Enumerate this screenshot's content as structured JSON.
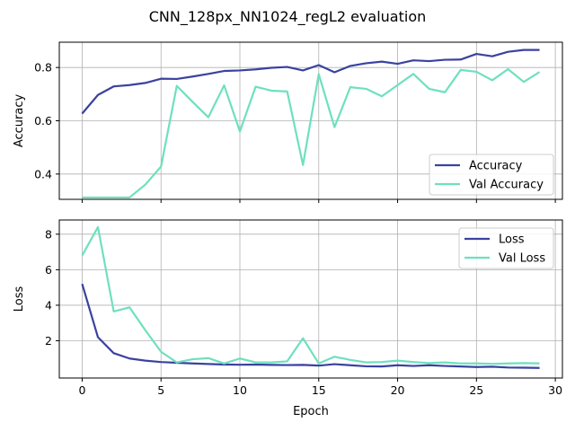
{
  "figure": {
    "suptitle": "CNN_128px_NN1024_regL2 evaluation"
  },
  "colors": {
    "train": "#3a42a0",
    "val": "#6ee0bf",
    "grid": "#b0b0b0"
  },
  "chart_data": [
    {
      "type": "line",
      "ylabel": "Accuracy",
      "xlabel": "",
      "xlim": [
        -1.45,
        30.45
      ],
      "ylim": [
        0.305,
        0.895
      ],
      "xticks": [
        0,
        5,
        10,
        15,
        20,
        25,
        30
      ],
      "xticklabels_visible": false,
      "yticks": [
        0.4,
        0.6,
        0.8
      ],
      "yticklabels": [
        "0.4",
        "0.6",
        "0.8"
      ],
      "grid": true,
      "legend": "lower-right",
      "x": [
        0,
        1,
        2,
        3,
        4,
        5,
        6,
        7,
        8,
        9,
        10,
        11,
        12,
        13,
        14,
        15,
        16,
        17,
        18,
        19,
        20,
        21,
        22,
        23,
        24,
        25,
        26,
        27,
        28,
        29
      ],
      "series": [
        {
          "name": "Accuracy",
          "color_key": "train",
          "values": [
            0.627,
            0.697,
            0.729,
            0.734,
            0.742,
            0.758,
            0.757,
            0.766,
            0.776,
            0.787,
            0.789,
            0.793,
            0.799,
            0.802,
            0.789,
            0.809,
            0.782,
            0.806,
            0.816,
            0.822,
            0.814,
            0.827,
            0.824,
            0.829,
            0.83,
            0.851,
            0.842,
            0.859,
            0.866,
            0.866
          ]
        },
        {
          "name": "Val Accuracy",
          "color_key": "val",
          "values": [
            0.312,
            0.312,
            0.312,
            0.312,
            0.36,
            0.428,
            0.731,
            0.671,
            0.613,
            0.733,
            0.56,
            0.728,
            0.713,
            0.71,
            0.434,
            0.775,
            0.576,
            0.726,
            0.72,
            0.692,
            0.734,
            0.776,
            0.72,
            0.707,
            0.791,
            0.784,
            0.752,
            0.794,
            0.746,
            0.783
          ]
        }
      ]
    },
    {
      "type": "line",
      "ylabel": "Loss",
      "xlabel": "Epoch",
      "xlim": [
        -1.45,
        30.45
      ],
      "ylim": [
        -0.1,
        8.8
      ],
      "xticks": [
        0,
        5,
        10,
        15,
        20,
        25,
        30
      ],
      "xticklabels": [
        "0",
        "5",
        "10",
        "15",
        "20",
        "25",
        "30"
      ],
      "yticks": [
        2,
        4,
        6,
        8
      ],
      "yticklabels": [
        "2",
        "4",
        "6",
        "8"
      ],
      "grid": true,
      "legend": "upper-right",
      "x": [
        0,
        1,
        2,
        3,
        4,
        5,
        6,
        7,
        8,
        9,
        10,
        11,
        12,
        13,
        14,
        15,
        16,
        17,
        18,
        19,
        20,
        21,
        22,
        23,
        24,
        25,
        26,
        27,
        28,
        29
      ],
      "series": [
        {
          "name": "Loss",
          "color_key": "train",
          "values": [
            5.2,
            2.2,
            1.3,
            1.0,
            0.88,
            0.8,
            0.76,
            0.72,
            0.69,
            0.66,
            0.65,
            0.66,
            0.64,
            0.63,
            0.64,
            0.6,
            0.68,
            0.62,
            0.56,
            0.55,
            0.62,
            0.58,
            0.62,
            0.58,
            0.55,
            0.52,
            0.54,
            0.49,
            0.48,
            0.47
          ]
        },
        {
          "name": "Val Loss",
          "color_key": "val",
          "values": [
            6.8,
            8.4,
            3.65,
            3.88,
            2.6,
            1.38,
            0.78,
            0.96,
            1.02,
            0.72,
            1.0,
            0.78,
            0.78,
            0.84,
            2.14,
            0.72,
            1.1,
            0.92,
            0.78,
            0.8,
            0.88,
            0.8,
            0.74,
            0.78,
            0.72,
            0.72,
            0.7,
            0.72,
            0.74,
            0.72
          ]
        }
      ]
    }
  ]
}
